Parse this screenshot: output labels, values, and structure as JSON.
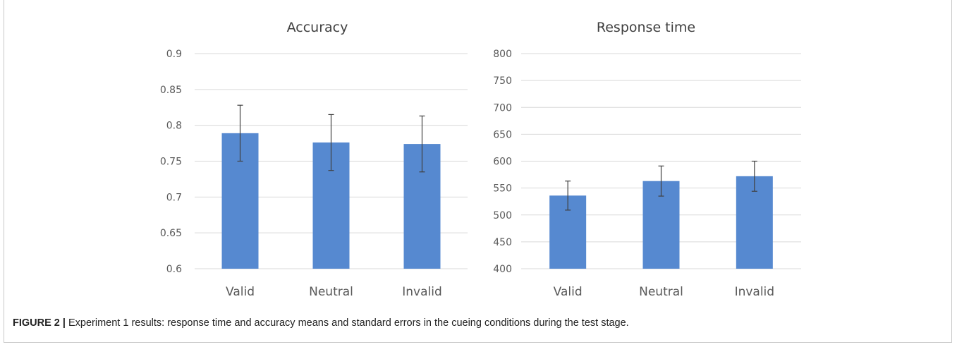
{
  "caption": {
    "label": "FIGURE 2 |",
    "text": " Experiment 1 results: response time and accuracy means and standard errors in the cueing conditions during the test stage."
  },
  "colors": {
    "bar": "#5689d0",
    "gridline": "#d9d9d9",
    "tick_text": "#595959",
    "title_text": "#404040",
    "error_bar": "#404040"
  },
  "chart_data": [
    {
      "type": "bar",
      "title": "Accuracy",
      "categories": [
        "Valid",
        "Neutral",
        "Invalid"
      ],
      "values": [
        0.789,
        0.776,
        0.774
      ],
      "errors": [
        0.039,
        0.039,
        0.039
      ],
      "ylim": [
        0.6,
        0.9
      ],
      "yticks": [
        0.6,
        0.65,
        0.7,
        0.75,
        0.8,
        0.85,
        0.9
      ],
      "ytick_labels": [
        "0.6",
        "0.65",
        "0.7",
        "0.75",
        "0.8",
        "0.85",
        "0.9"
      ],
      "xlabel": "",
      "ylabel": "",
      "grid": true,
      "legend": "none"
    },
    {
      "type": "bar",
      "title": "Response time",
      "categories": [
        "Valid",
        "Neutral",
        "Invalid"
      ],
      "values": [
        536,
        563,
        572
      ],
      "errors": [
        27,
        28,
        28
      ],
      "ylim": [
        400,
        800
      ],
      "yticks": [
        400,
        450,
        500,
        550,
        600,
        650,
        700,
        750,
        800
      ],
      "ytick_labels": [
        "400",
        "450",
        "500",
        "550",
        "600",
        "650",
        "700",
        "750",
        "800"
      ],
      "xlabel": "",
      "ylabel": "",
      "grid": true,
      "legend": "none"
    }
  ]
}
